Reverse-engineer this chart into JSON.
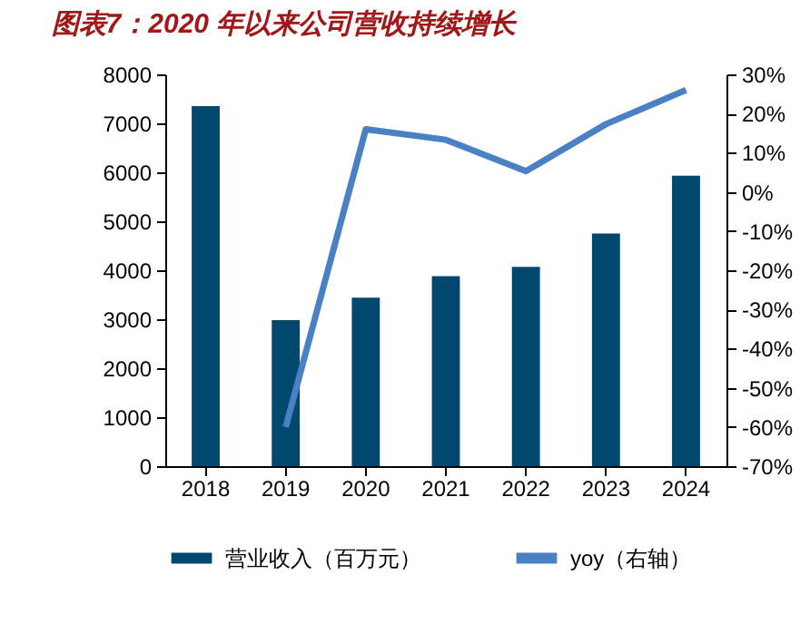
{
  "chart_data": {
    "type": "bar",
    "title": "图表7：2020 年以来公司营收持续增长",
    "categories": [
      "2018",
      "2019",
      "2020",
      "2021",
      "2022",
      "2023",
      "2024"
    ],
    "series": [
      {
        "name": "营业收入（百万元）",
        "color": "#00486e",
        "values": [
          7350,
          2980,
          3440,
          3880,
          4070,
          4750,
          5930
        ]
      },
      {
        "name": "yoy（右轴）",
        "type": "line",
        "axis": "y2",
        "color": "#4a80c4",
        "values": [
          null,
          -60,
          16,
          13.3,
          5.3,
          17.3,
          26
        ]
      }
    ],
    "ylim": [
      0,
      8000
    ],
    "yticks": [
      0,
      1000,
      2000,
      3000,
      4000,
      5000,
      6000,
      7000,
      8000
    ],
    "y2lim": [
      -70,
      30
    ],
    "y2ticks": [
      {
        "value": -70,
        "label": "-70%"
      },
      {
        "value": -60,
        "label": "-60%"
      },
      {
        "value": -50,
        "label": "-50%"
      },
      {
        "value": -40,
        "label": "-40%"
      },
      {
        "value": -30,
        "label": "-30%"
      },
      {
        "value": -20,
        "label": "-20%"
      },
      {
        "value": -10,
        "label": "-10%"
      },
      {
        "value": 0,
        "label": "0%"
      },
      {
        "value": 10,
        "label": "10%"
      },
      {
        "value": 20,
        "label": "20%"
      },
      {
        "value": 30,
        "label": "30%"
      }
    ],
    "grid": false,
    "legend": "bottom"
  }
}
